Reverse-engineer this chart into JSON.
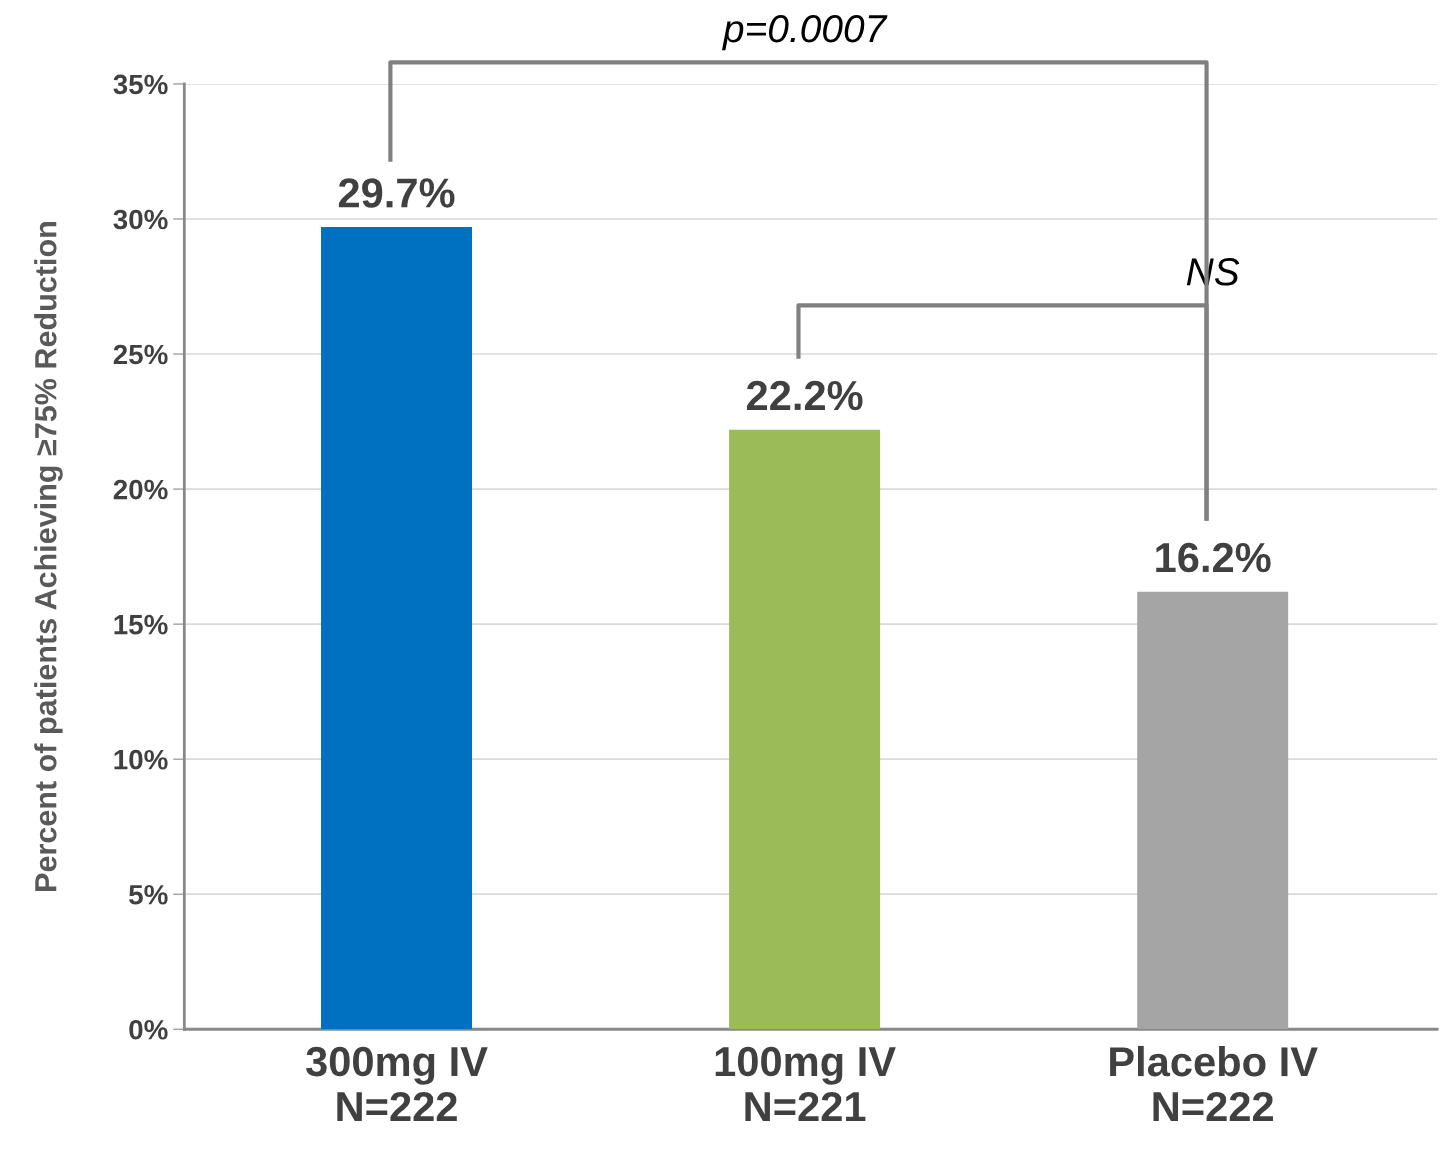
{
  "chart_data": {
    "type": "bar",
    "ylabel": "Percent of patients Achieving ≥75% Reduction",
    "categories": [
      "300mg IV\nN=222",
      "100mg IV\nN=221",
      "Placebo IV\nN=222"
    ],
    "values": [
      29.7,
      22.2,
      16.2
    ],
    "colors": [
      "#0070c0",
      "#9bbb59",
      "#a5a5a5"
    ],
    "value_labels": [
      "29.7%",
      "22.2%",
      "16.2%"
    ],
    "ylim": [
      0,
      35
    ],
    "yticks": [
      {
        "value": 0,
        "label": "0%"
      },
      {
        "value": 5,
        "label": "5%"
      },
      {
        "value": 10,
        "label": "10%"
      },
      {
        "value": 15,
        "label": "15%"
      },
      {
        "value": 20,
        "label": "20%"
      },
      {
        "value": 25,
        "label": "25%"
      },
      {
        "value": 30,
        "label": "30%"
      },
      {
        "value": 35,
        "label": "35%"
      }
    ],
    "grid": "y",
    "annotations": [
      "p=0.0007",
      "NS"
    ]
  }
}
